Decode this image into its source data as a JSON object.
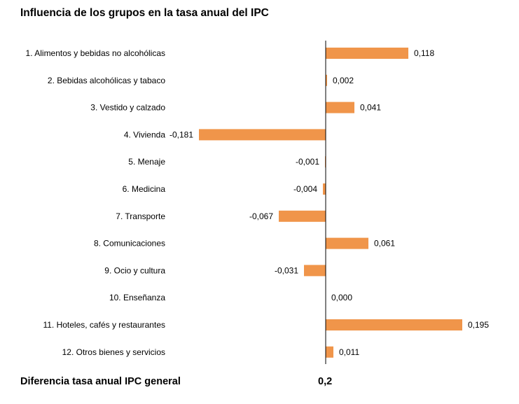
{
  "title": "Influencia de los grupos en la tasa anual del IPC",
  "footer": {
    "label": "Diferencia tasa anual IPC general",
    "value": "0,2"
  },
  "colors": {
    "bar": "#F0954A",
    "axis": "#000000",
    "text": "#000000"
  },
  "chart_data": {
    "type": "bar",
    "orientation": "horizontal",
    "categories": [
      "1. Alimentos y bebidas no alcohólicas",
      "2. Bebidas alcohólicas y tabaco",
      "3. Vestido y calzado",
      "4. Vivienda",
      "5. Menaje",
      "6. Medicina",
      "7. Transporte",
      "8. Comunicaciones",
      "9. Ocio y cultura",
      "10. Enseñanza",
      "11. Hoteles, cafés y restaurantes",
      "12. Otros bienes y servicios"
    ],
    "values": [
      0.118,
      0.002,
      0.041,
      -0.181,
      -0.001,
      -0.004,
      -0.067,
      0.061,
      -0.031,
      0.0,
      0.195,
      0.011
    ],
    "value_labels": [
      "0,118",
      "0,002",
      "0,041",
      "-0,181",
      "-0,001",
      "-0,004",
      "-0,067",
      "0,061",
      "-0,031",
      "0,000",
      "0,195",
      "0,011"
    ],
    "title": "Influencia de los grupos en la tasa anual del IPC",
    "xlabel": "",
    "ylabel": "",
    "grid": false,
    "legend": "none"
  }
}
